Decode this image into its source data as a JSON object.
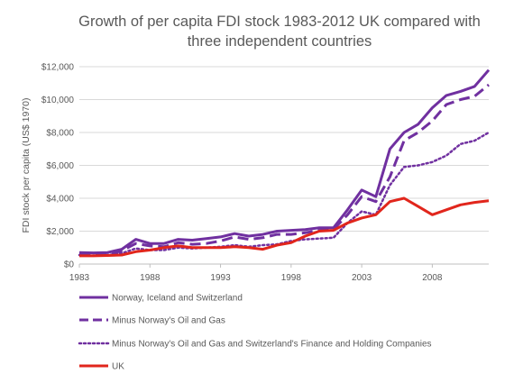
{
  "chart_data": {
    "type": "line",
    "title_line1": "Growth of per capita FDI stock 1983-2012 UK compared with",
    "title_line2": "three independent countries",
    "ylabel": "FDI stock per capita (US$ 1970)",
    "xlabel": "",
    "ylim": [
      0,
      12000
    ],
    "xlim": [
      1983,
      2012
    ],
    "grid": true,
    "legend_position": "bottom",
    "x_ticks": [
      1983,
      1988,
      1993,
      1998,
      2003,
      2008
    ],
    "x_tick_labels": [
      "1983",
      "1988",
      "1993",
      "1998",
      "2003",
      "2008"
    ],
    "y_ticks": [
      0,
      2000,
      4000,
      6000,
      8000,
      10000,
      12000
    ],
    "y_tick_labels": [
      "$0",
      "$2,000",
      "$4,000",
      "$6,000",
      "$8,000",
      "$10,000",
      "$12,000"
    ],
    "x": [
      1983,
      1984,
      1985,
      1986,
      1987,
      1988,
      1989,
      1990,
      1991,
      1992,
      1993,
      1994,
      1995,
      1996,
      1997,
      1998,
      1999,
      2000,
      2001,
      2002,
      2003,
      2004,
      2005,
      2006,
      2007,
      2008,
      2009,
      2010,
      2011,
      2012
    ],
    "series": [
      {
        "name": "Norway, Iceland and Switzerland",
        "color": "#7030A0",
        "style": "solid",
        "values": [
          700,
          680,
          700,
          900,
          1500,
          1250,
          1250,
          1500,
          1450,
          1550,
          1650,
          1850,
          1700,
          1800,
          2000,
          2050,
          2100,
          2200,
          2200,
          3300,
          4500,
          4100,
          7000,
          8000,
          8500,
          9500,
          10250,
          10500,
          10800,
          11800
        ]
      },
      {
        "name": "Minus Norway's Oil and Gas",
        "color": "#7030A0",
        "style": "dashed",
        "values": [
          600,
          580,
          600,
          800,
          1250,
          1100,
          1050,
          1300,
          1200,
          1250,
          1400,
          1650,
          1500,
          1600,
          1800,
          1800,
          1900,
          2050,
          2100,
          3000,
          4100,
          3800,
          5300,
          7500,
          8000,
          8700,
          9700,
          10000,
          10200,
          10900
        ]
      },
      {
        "name": "Minus Norway's Oil and Gas and Switzerland's Finance and Holding Companies",
        "color": "#7030A0",
        "style": "dotted",
        "values": [
          550,
          520,
          550,
          650,
          950,
          850,
          850,
          1000,
          950,
          1000,
          1050,
          1150,
          1050,
          1150,
          1200,
          1400,
          1500,
          1550,
          1600,
          2500,
          3200,
          3000,
          4800,
          5900,
          6000,
          6200,
          6600,
          7300,
          7500,
          8000
        ]
      },
      {
        "name": "UK",
        "color": "#E1261C",
        "style": "solid",
        "values": [
          500,
          500,
          520,
          550,
          750,
          850,
          1000,
          1100,
          1000,
          1000,
          1000,
          1050,
          1000,
          900,
          1150,
          1300,
          1700,
          2000,
          2050,
          2500,
          2800,
          3000,
          3800,
          4000,
          3500,
          3000,
          3300,
          3600,
          3750,
          3850
        ]
      }
    ]
  }
}
